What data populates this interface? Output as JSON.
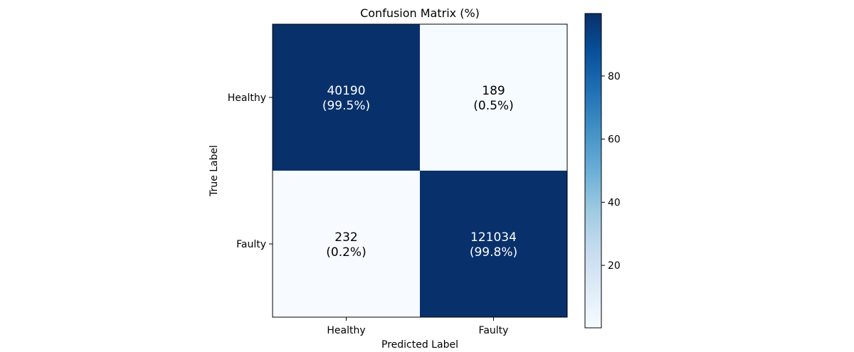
{
  "chart_data": {
    "type": "heatmap",
    "title": "Confusion Matrix (%)",
    "xlabel": "Predicted Label",
    "ylabel": "True Label",
    "x_categories": [
      "Healthy",
      "Faulty"
    ],
    "y_categories": [
      "Healthy",
      "Faulty"
    ],
    "counts": [
      [
        40190,
        189
      ],
      [
        232,
        121034
      ]
    ],
    "percentages": [
      [
        99.5,
        0.5
      ],
      [
        0.2,
        99.8
      ]
    ],
    "cell_labels": [
      [
        {
          "count": "40190",
          "percent": "(99.5%)"
        },
        {
          "count": "189",
          "percent": "(0.5%)"
        }
      ],
      [
        {
          "count": "232",
          "percent": "(0.2%)"
        },
        {
          "count": "121034",
          "percent": "(99.8%)"
        }
      ]
    ],
    "colormap": "Blues",
    "colorbar": {
      "range": [
        0.2,
        99.8
      ],
      "ticks": [
        20,
        40,
        60,
        80
      ],
      "tick_labels": [
        "20",
        "40",
        "60",
        "80"
      ]
    },
    "grid": false,
    "colors": {
      "low": "#f7fbff",
      "high": "#08306b",
      "text_on_dark": "#ffffff",
      "text_on_light": "#000000"
    }
  }
}
